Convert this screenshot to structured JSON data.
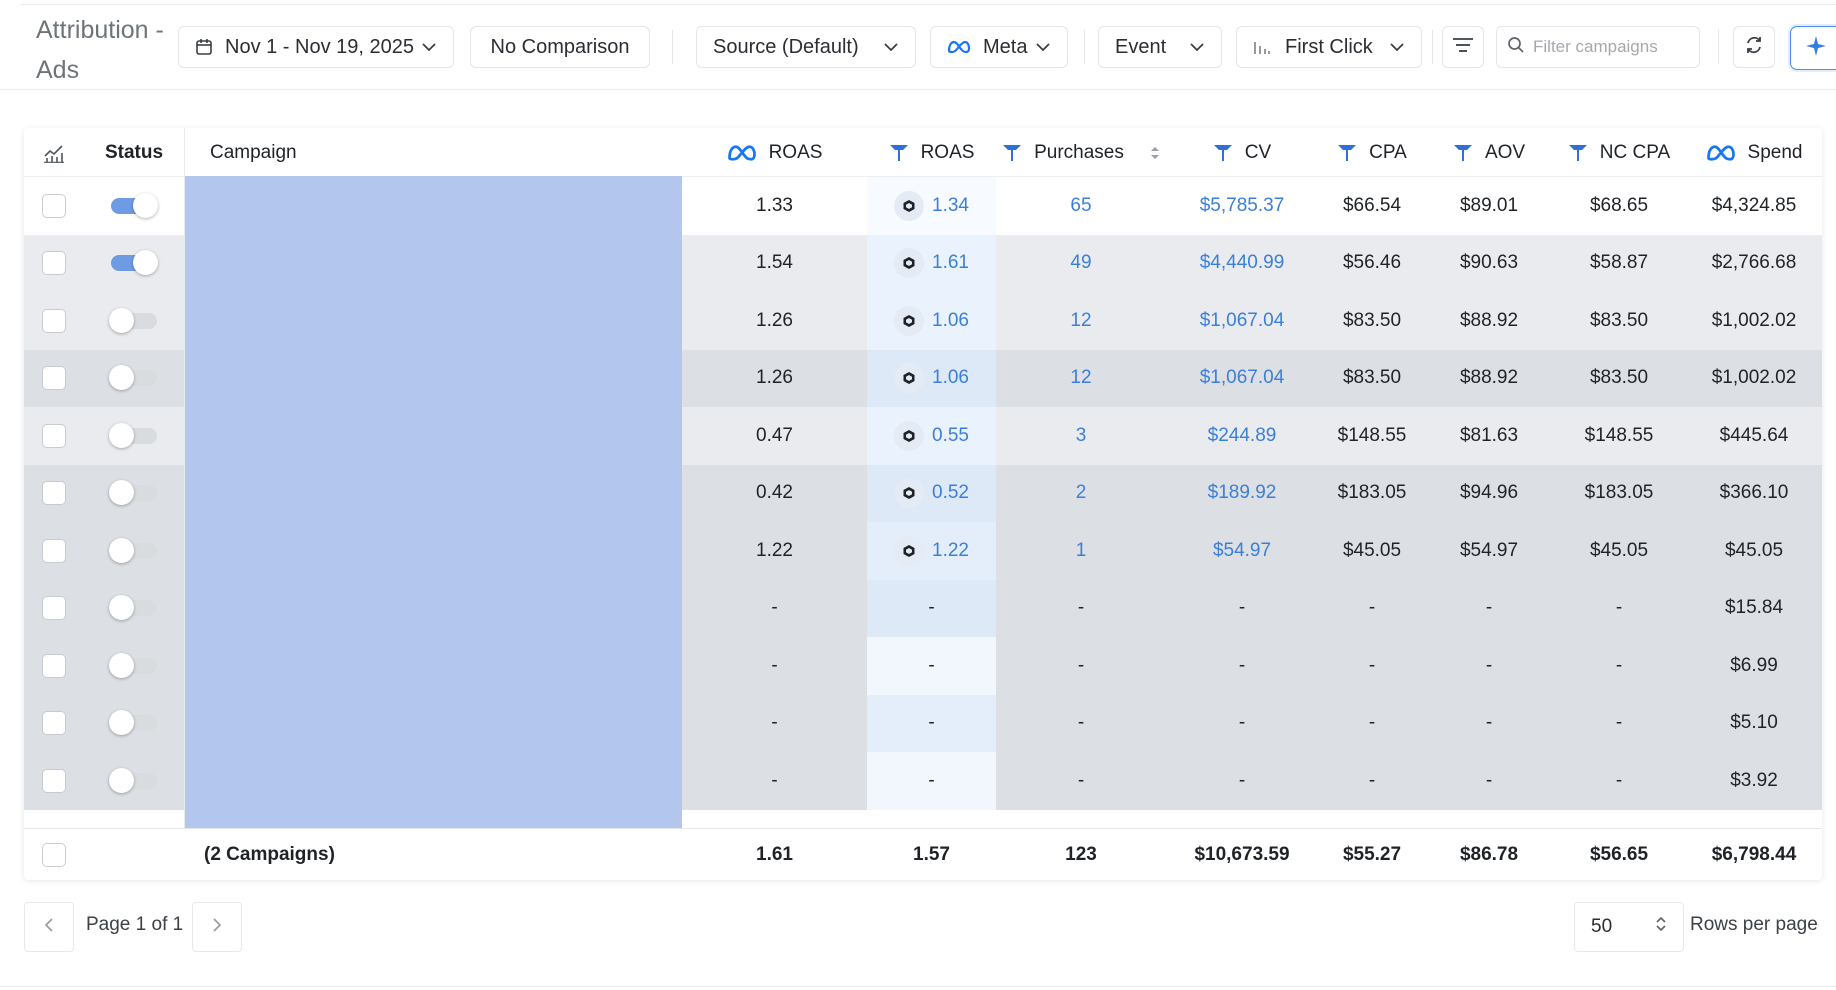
{
  "page": {
    "title": "Attribution - Ads"
  },
  "toolbar": {
    "date_range": "Nov 1 - Nov 19, 2025",
    "comparison": "No Comparison",
    "source": "Source (Default)",
    "platform": "Meta",
    "event": "Event",
    "attribution_model": "First Click",
    "search_placeholder": "Filter campaigns"
  },
  "table": {
    "columns": [
      {
        "source": "meta",
        "label": "ROAS"
      },
      {
        "source": "tw",
        "label": "ROAS"
      },
      {
        "source": "tw",
        "label": "Purchases"
      },
      {
        "source": "tw",
        "label": "CV"
      },
      {
        "source": "tw",
        "label": "CPA"
      },
      {
        "source": "tw",
        "label": "AOV"
      },
      {
        "source": "tw",
        "label": "NC CPA"
      },
      {
        "source": "meta",
        "label": "Spend"
      }
    ],
    "status_header": "Status",
    "campaign_header": "Campaign",
    "rows": [
      {
        "status": "on",
        "meta_roas": "1.33",
        "tw_roas": "1.34",
        "purchases": "65",
        "cv": "$5,785.37",
        "cpa": "$66.54",
        "aov": "$89.01",
        "nc_cpa": "$68.65",
        "spend": "$4,324.85"
      },
      {
        "status": "on",
        "meta_roas": "1.54",
        "tw_roas": "1.61",
        "purchases": "49",
        "cv": "$4,440.99",
        "cpa": "$56.46",
        "aov": "$90.63",
        "nc_cpa": "$58.87",
        "spend": "$2,766.68"
      },
      {
        "status": "off",
        "meta_roas": "1.26",
        "tw_roas": "1.06",
        "purchases": "12",
        "cv": "$1,067.04",
        "cpa": "$83.50",
        "aov": "$88.92",
        "nc_cpa": "$83.50",
        "spend": "$1,002.02"
      },
      {
        "status": "off",
        "meta_roas": "1.26",
        "tw_roas": "1.06",
        "purchases": "12",
        "cv": "$1,067.04",
        "cpa": "$83.50",
        "aov": "$88.92",
        "nc_cpa": "$83.50",
        "spend": "$1,002.02"
      },
      {
        "status": "off",
        "meta_roas": "0.47",
        "tw_roas": "0.55",
        "purchases": "3",
        "cv": "$244.89",
        "cpa": "$148.55",
        "aov": "$81.63",
        "nc_cpa": "$148.55",
        "spend": "$445.64"
      },
      {
        "status": "off",
        "meta_roas": "0.42",
        "tw_roas": "0.52",
        "purchases": "2",
        "cv": "$189.92",
        "cpa": "$183.05",
        "aov": "$94.96",
        "nc_cpa": "$183.05",
        "spend": "$366.10"
      },
      {
        "status": "off",
        "meta_roas": "1.22",
        "tw_roas": "1.22",
        "purchases": "1",
        "cv": "$54.97",
        "cpa": "$45.05",
        "aov": "$54.97",
        "nc_cpa": "$45.05",
        "spend": "$45.05"
      },
      {
        "status": "off",
        "meta_roas": "-",
        "tw_roas": "-",
        "purchases": "-",
        "cv": "-",
        "cpa": "-",
        "aov": "-",
        "nc_cpa": "-",
        "spend": "$15.84"
      },
      {
        "status": "off",
        "meta_roas": "-",
        "tw_roas": "-",
        "purchases": "-",
        "cv": "-",
        "cpa": "-",
        "aov": "-",
        "nc_cpa": "-",
        "spend": "$6.99"
      },
      {
        "status": "off",
        "meta_roas": "-",
        "tw_roas": "-",
        "purchases": "-",
        "cv": "-",
        "cpa": "-",
        "aov": "-",
        "nc_cpa": "-",
        "spend": "$5.10"
      },
      {
        "status": "off",
        "meta_roas": "-",
        "tw_roas": "-",
        "purchases": "-",
        "cv": "-",
        "cpa": "-",
        "aov": "-",
        "nc_cpa": "-",
        "spend": "$3.92"
      }
    ],
    "totals": {
      "label": "(2 Campaigns)",
      "meta_roas": "1.61",
      "tw_roas": "1.57",
      "purchases": "123",
      "cv": "$10,673.59",
      "cpa": "$55.27",
      "aov": "$86.78",
      "nc_cpa": "$56.65",
      "spend": "$6,798.44"
    }
  },
  "pagination": {
    "page_text": "Page 1 of 1",
    "rows_per_page_value": "50",
    "rows_per_page_label": "Rows per page"
  },
  "colors": {
    "accent": "#3b7fd8",
    "campaign_redaction": "#b3c6ed",
    "meta_blue": "#1877f2",
    "toggle_on": "#6f9be4"
  }
}
